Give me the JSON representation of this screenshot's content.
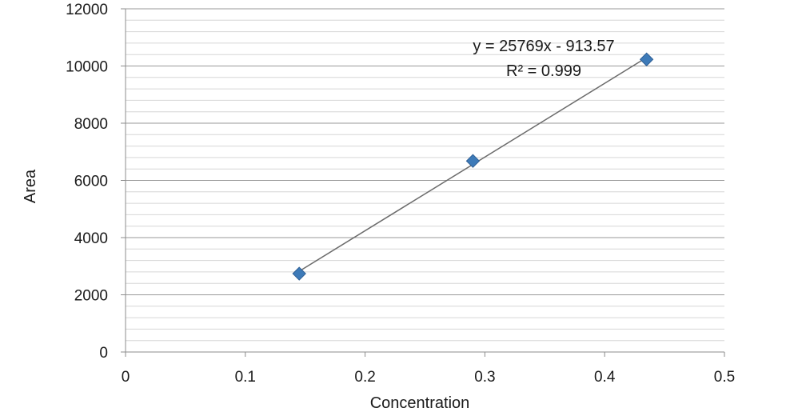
{
  "chart_data": {
    "type": "scatter",
    "xlabel": "Concentration",
    "ylabel": "Area",
    "xlim": [
      0,
      0.5
    ],
    "ylim": [
      0,
      12000
    ],
    "x_ticks": [
      0,
      0.1,
      0.2,
      0.3,
      0.4,
      0.5
    ],
    "x_tick_labels": [
      "0",
      "0.1",
      "0.2",
      "0.3",
      "0.4",
      "0.5"
    ],
    "y_ticks": [
      0,
      2000,
      4000,
      6000,
      8000,
      10000,
      12000
    ],
    "y_tick_labels": [
      "0",
      "2000",
      "4000",
      "6000",
      "8000",
      "10000",
      "12000"
    ],
    "minor_y_step": 400,
    "grid": true,
    "legend": "none",
    "series": [
      {
        "x": [
          0.145,
          0.29,
          0.435
        ],
        "y": [
          2740,
          6680,
          10230
        ],
        "marker": "diamond",
        "color": "#3d7ab8"
      }
    ],
    "trendline": {
      "slope": 25769,
      "intercept": -913.57,
      "x_range": [
        0.145,
        0.435
      ],
      "color": "#6b6b6b",
      "equation": "y = 25769x - 913.57",
      "r_squared": "R² = 0.999"
    }
  }
}
